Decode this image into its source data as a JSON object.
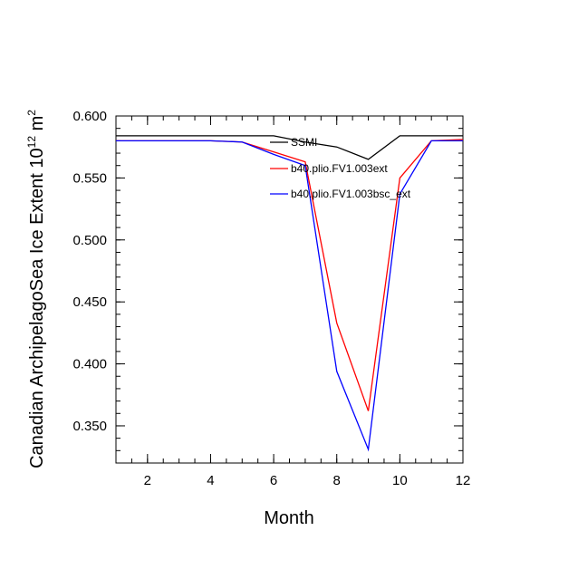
{
  "chart_data": {
    "type": "line",
    "title": "",
    "xlabel": "Month",
    "ylabel": "Canadian ArchipelagoSea Ice Extent 10",
    "ylabel_exponent": "12",
    "ylabel_unit": " m",
    "ylabel_unit_exponent": "2",
    "xlim": [
      1,
      12
    ],
    "ylim": [
      0.32,
      0.6
    ],
    "xticks": [
      2,
      4,
      6,
      8,
      10,
      12
    ],
    "xtick_labels": [
      "2",
      "4",
      "6",
      "8",
      "10",
      "12"
    ],
    "yticks": [
      0.35,
      0.4,
      0.45,
      0.5,
      0.55,
      0.6
    ],
    "ytick_labels": [
      "0.350",
      "0.400",
      "0.450",
      "0.500",
      "0.550",
      "0.600"
    ],
    "x": [
      1,
      2,
      3,
      4,
      5,
      6,
      7,
      8,
      9,
      10,
      11,
      12
    ],
    "series": [
      {
        "name": "SSMI",
        "color": "#000000",
        "values": [
          0.584,
          0.584,
          0.584,
          0.584,
          0.584,
          0.584,
          0.579,
          0.575,
          0.565,
          0.584,
          0.584,
          0.584
        ]
      },
      {
        "name": "b40.plio.FV1.003ext",
        "color": "#ff0000",
        "values": [
          0.58,
          0.58,
          0.58,
          0.58,
          0.579,
          0.571,
          0.563,
          0.433,
          0.362,
          0.55,
          0.58,
          0.581
        ]
      },
      {
        "name": "b40.plio.FV1.003bsc_ext",
        "color": "#0000ff",
        "values": [
          0.58,
          0.58,
          0.58,
          0.58,
          0.579,
          0.569,
          0.56,
          0.394,
          0.331,
          0.537,
          0.58,
          0.58
        ]
      }
    ],
    "legend_position": "top-right"
  }
}
